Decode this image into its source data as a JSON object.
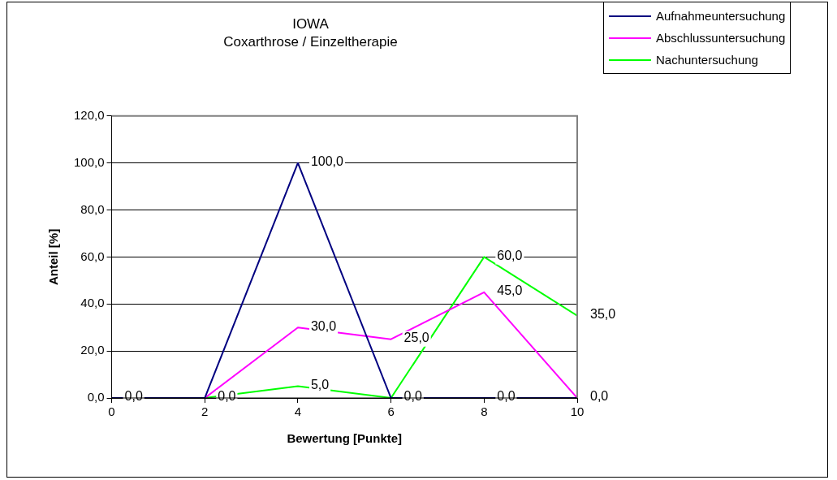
{
  "chart_data": {
    "type": "line",
    "title": "IOWA",
    "subtitle": "Coxarthrose / Einzeltherapie",
    "xlabel": "Bewertung [Punkte]",
    "ylabel": "Anteil [%]",
    "x": [
      0,
      2,
      4,
      6,
      8,
      10
    ],
    "series": [
      {
        "name": "Aufnahmeuntersuchung",
        "color": "#000080",
        "values": [
          0,
          0,
          100,
          0,
          0,
          0
        ],
        "value_labels": [
          null,
          null,
          "100,0",
          null,
          "0,0",
          null
        ]
      },
      {
        "name": "Abschlussuntersuchung",
        "color": "#ff00ff",
        "values": [
          0,
          0,
          30,
          25,
          45,
          0
        ],
        "value_labels": [
          null,
          null,
          "30,0",
          "25,0",
          "45,0",
          "0,0"
        ]
      },
      {
        "name": "Nachuntersuchung",
        "color": "#00ff00",
        "values": [
          0,
          0,
          5,
          0,
          60,
          35
        ],
        "value_labels": [
          "0,0",
          "0,0",
          "5,0",
          "0,0",
          "60,0",
          "35,0"
        ]
      }
    ],
    "xlim": [
      0,
      10
    ],
    "xticks": [
      0,
      2,
      4,
      6,
      8,
      10
    ],
    "ylim": [
      0,
      120
    ],
    "yticks": [
      {
        "value": 0,
        "label": "0,0"
      },
      {
        "value": 20,
        "label": "20,0"
      },
      {
        "value": 40,
        "label": "40,0"
      },
      {
        "value": 60,
        "label": "60,0"
      },
      {
        "value": 80,
        "label": "80,0"
      },
      {
        "value": 100,
        "label": "100,0"
      },
      {
        "value": 120,
        "label": "120,0"
      }
    ],
    "grid": "y",
    "legend": "top right",
    "marker": "none",
    "line_style": "solid"
  }
}
